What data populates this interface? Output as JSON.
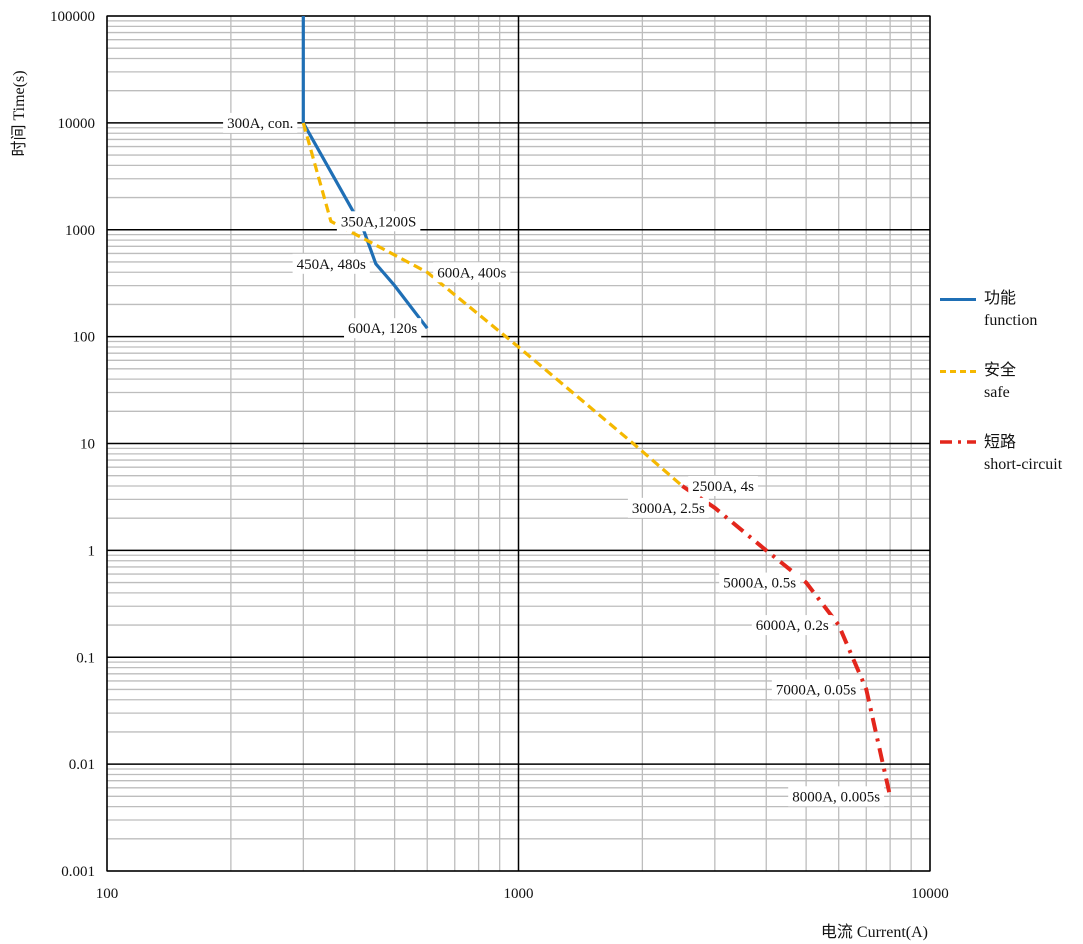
{
  "chart_data": {
    "type": "line",
    "title": "",
    "xlabel": "电流 Current(A)",
    "ylabel": "时间 Time(s)",
    "xscale": "log",
    "yscale": "log",
    "xlim": [
      100,
      10000
    ],
    "ylim": [
      0.001,
      100000
    ],
    "x_ticks": [
      "100",
      "1000",
      "10000"
    ],
    "y_ticks": [
      "0.001",
      "0.01",
      "0.1",
      "1",
      "10",
      "100",
      "1000",
      "10000",
      "100000"
    ],
    "grid": true,
    "legend_position": "right",
    "series": [
      {
        "name": "功能 function",
        "name_line1": "功能",
        "name_line2": "function",
        "color": "#1f6fb5",
        "style": "solid",
        "points": [
          [
            300,
            100000
          ],
          [
            300,
            10000
          ],
          [
            420,
            1000
          ],
          [
            450,
            480
          ],
          [
            500,
            300
          ],
          [
            600,
            120
          ]
        ]
      },
      {
        "name": "安全 safe",
        "name_line1": "安全",
        "name_line2": "safe",
        "color": "#f5b800",
        "style": "dashed",
        "points": [
          [
            300,
            10000
          ],
          [
            350,
            1200
          ],
          [
            600,
            400
          ],
          [
            1000,
            80
          ],
          [
            1900,
            10
          ],
          [
            2500,
            4
          ]
        ]
      },
      {
        "name": "短路 short-circuit",
        "name_line1": "短路",
        "name_line2": "short-circuit",
        "color": "#e3261c",
        "style": "dashdot",
        "points": [
          [
            2500,
            4
          ],
          [
            3000,
            2.5
          ],
          [
            4000,
            1
          ],
          [
            5000,
            0.5
          ],
          [
            6000,
            0.2
          ],
          [
            7000,
            0.05
          ],
          [
            8000,
            0.005
          ]
        ]
      }
    ],
    "annotations": [
      {
        "text": "300A, con.",
        "x": 300,
        "y": 10000,
        "side": "left"
      },
      {
        "text": "350A,1200S",
        "x": 350,
        "y": 1200,
        "side": "right"
      },
      {
        "text": "450A, 480s",
        "x": 450,
        "y": 480,
        "side": "left"
      },
      {
        "text": "600A, 400s",
        "x": 600,
        "y": 400,
        "side": "right"
      },
      {
        "text": "600A, 120s",
        "x": 600,
        "y": 120,
        "side": "left"
      },
      {
        "text": "2500A, 4s",
        "x": 2500,
        "y": 4,
        "side": "right"
      },
      {
        "text": "3000A, 2.5s",
        "x": 3000,
        "y": 2.5,
        "side": "left"
      },
      {
        "text": "5000A, 0.5s",
        "x": 5000,
        "y": 0.5,
        "side": "left"
      },
      {
        "text": "6000A, 0.2s",
        "x": 6000,
        "y": 0.2,
        "side": "left"
      },
      {
        "text": "7000A, 0.05s",
        "x": 7000,
        "y": 0.05,
        "side": "left"
      },
      {
        "text": "8000A, 0.005s",
        "x": 8000,
        "y": 0.005,
        "side": "left"
      }
    ]
  }
}
